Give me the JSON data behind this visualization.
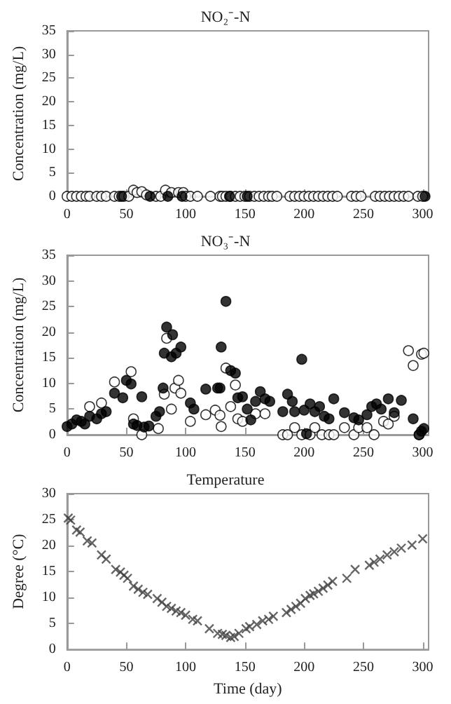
{
  "chart_data": [
    {
      "type": "scatter",
      "title": "NO₂⁻-N",
      "ylabel": "Concentration (mg/L)",
      "xlim": [
        0,
        305
      ],
      "xticks": [
        0,
        50,
        100,
        150,
        200,
        250,
        300
      ],
      "ylim": [
        0,
        35
      ],
      "yticks": [
        0,
        5,
        10,
        15,
        20,
        25,
        30,
        35
      ],
      "marker": "circle",
      "series": [
        {
          "color": "#ffffff",
          "x": [
            0,
            4,
            8,
            12,
            16,
            19,
            25,
            29,
            33,
            40,
            44,
            48,
            52,
            56,
            59,
            63,
            67,
            75,
            79,
            83,
            88,
            94,
            98,
            100,
            104,
            110,
            121,
            129,
            131,
            134,
            138,
            142,
            146,
            150,
            154,
            158,
            162,
            166,
            170,
            173,
            177,
            188,
            192,
            196,
            200,
            204,
            208,
            212,
            216,
            220,
            224,
            228,
            240,
            244,
            248,
            260,
            264,
            268,
            272,
            276,
            280,
            284,
            288,
            296,
            300
          ],
          "values": [
            0,
            0,
            0,
            0,
            0,
            0,
            0,
            0,
            0,
            0,
            0,
            0,
            0,
            1.3,
            0.8,
            1,
            0.3,
            0,
            0,
            1.3,
            0.8,
            0.8,
            0.8,
            0,
            0,
            0,
            0,
            0,
            0,
            0,
            0,
            0,
            0,
            0,
            0,
            0,
            0,
            0,
            0,
            0,
            0,
            0,
            0,
            0,
            0,
            0,
            0,
            0,
            0,
            0,
            0,
            0,
            0,
            0,
            0,
            0,
            0,
            0,
            0,
            0,
            0,
            0,
            0,
            0,
            0
          ]
        },
        {
          "color": "#000000",
          "x": [
            46,
            70,
            85,
            97,
            137,
            152,
            302
          ],
          "values": [
            0,
            0,
            0,
            0,
            0,
            0,
            0
          ]
        }
      ]
    },
    {
      "type": "scatter",
      "title": "NO₃⁻-N",
      "ylabel": "Concentration (mg/L)",
      "xlim": [
        0,
        305
      ],
      "xticks": [
        0,
        50,
        100,
        150,
        200,
        250,
        300
      ],
      "ylim": [
        0,
        35
      ],
      "yticks": [
        0,
        5,
        10,
        15,
        20,
        25,
        30,
        35
      ],
      "marker": "circle",
      "series": [
        {
          "color": "#ffffff",
          "x": [
            19,
            29,
            40,
            54,
            56,
            63,
            77,
            82,
            84,
            88,
            91,
            94,
            96,
            104,
            117,
            125,
            129,
            130,
            134,
            138,
            142,
            144,
            148,
            159,
            167,
            182,
            186,
            192,
            198,
            205,
            209,
            215,
            221,
            225,
            234,
            242,
            246,
            253,
            259,
            267,
            271,
            276,
            288,
            292,
            297,
            299,
            301
          ],
          "values": [
            5.5,
            6.2,
            10.3,
            12.3,
            3.1,
            0,
            1.2,
            7.9,
            18.8,
            5,
            9.1,
            10.6,
            8.1,
            2.6,
            3.9,
            4.8,
            3.8,
            1.6,
            13,
            5.5,
            9.7,
            3.1,
            2.6,
            4.1,
            4.1,
            0,
            0,
            1.4,
            0,
            0,
            1.4,
            0,
            0,
            0,
            1.4,
            0,
            1.4,
            1.4,
            0,
            2.6,
            2.1,
            3.6,
            16.4,
            13.5,
            0,
            15.7,
            15.9
          ]
        },
        {
          "color": "#000000",
          "x": [
            0,
            4,
            8,
            12,
            15,
            19,
            25,
            29,
            33,
            40,
            47,
            50,
            54,
            56,
            59,
            63,
            65,
            69,
            75,
            78,
            81,
            82,
            84,
            88,
            89,
            92,
            96,
            104,
            107,
            117,
            127,
            129,
            130,
            134,
            138,
            142,
            144,
            148,
            152,
            155,
            159,
            163,
            167,
            171,
            182,
            186,
            190,
            192,
            198,
            200,
            202,
            205,
            209,
            213,
            217,
            221,
            225,
            234,
            242,
            246,
            253,
            257,
            261,
            265,
            271,
            276,
            282,
            292,
            297,
            299,
            301
          ],
          "values": [
            1.6,
            2.1,
            2.9,
            2.6,
            2.1,
            3.6,
            3.1,
            4.1,
            4.5,
            8.1,
            7.2,
            10.6,
            9.9,
            2.1,
            1.8,
            7.4,
            1.5,
            1.7,
            3.6,
            4.5,
            9.1,
            15.9,
            21,
            15.2,
            19.5,
            15.9,
            17.1,
            6.2,
            5,
            8.9,
            9.1,
            9.1,
            17.1,
            26,
            12.5,
            12,
            7.2,
            7.4,
            5,
            2.9,
            6.5,
            8.4,
            7,
            6.5,
            4.5,
            7.9,
            6.5,
            4.5,
            14.7,
            4.8,
            0.2,
            6,
            4.5,
            5.5,
            3.6,
            3.1,
            7,
            4.3,
            3.3,
            2.9,
            3.9,
            5.5,
            6,
            5,
            7,
            4.3,
            6.7,
            3.1,
            0,
            0.7,
            1.2
          ]
        }
      ]
    },
    {
      "type": "scatter",
      "title": "Temperature",
      "xlabel": "Time (day)",
      "ylabel": "Degree (°C)",
      "xlim": [
        0,
        305
      ],
      "xticks": [
        0,
        50,
        100,
        150,
        200,
        250,
        300
      ],
      "ylim": [
        0,
        30
      ],
      "yticks": [
        0,
        5,
        10,
        15,
        20,
        25,
        30
      ],
      "marker": "cross",
      "series": [
        {
          "color": "#404040",
          "x": [
            1,
            3,
            8,
            11,
            17,
            21,
            29,
            33,
            41,
            45,
            48,
            51,
            56,
            60,
            64,
            68,
            76,
            80,
            84,
            88,
            92,
            96,
            100,
            106,
            110,
            120,
            127,
            131,
            134,
            138,
            141,
            145,
            151,
            154,
            160,
            165,
            170,
            174,
            185,
            189,
            193,
            197,
            201,
            205,
            208,
            212,
            216,
            220,
            224,
            236,
            243,
            255,
            259,
            264,
            270,
            276,
            282,
            291,
            300
          ],
          "values": [
            25.3,
            24.9,
            23,
            22.6,
            20.9,
            20.5,
            18.2,
            17.4,
            15.4,
            14.9,
            14.3,
            13.7,
            12.2,
            11.6,
            11,
            10.6,
            9.8,
            9.1,
            8.3,
            7.9,
            7.4,
            7.1,
            6.6,
            5.8,
            5.5,
            4,
            3.1,
            2.9,
            2.7,
            2.3,
            2.5,
            3.1,
            4,
            4.4,
            4.8,
            5.5,
            5.8,
            6.4,
            7.1,
            7.7,
            8.3,
            8.9,
            9.8,
            10.4,
            10.7,
            11.2,
            11.8,
            12.4,
            13.1,
            13.7,
            15.4,
            16.2,
            16.8,
            17.4,
            18.2,
            18.8,
            19.5,
            20.1,
            21.3
          ]
        }
      ]
    }
  ]
}
